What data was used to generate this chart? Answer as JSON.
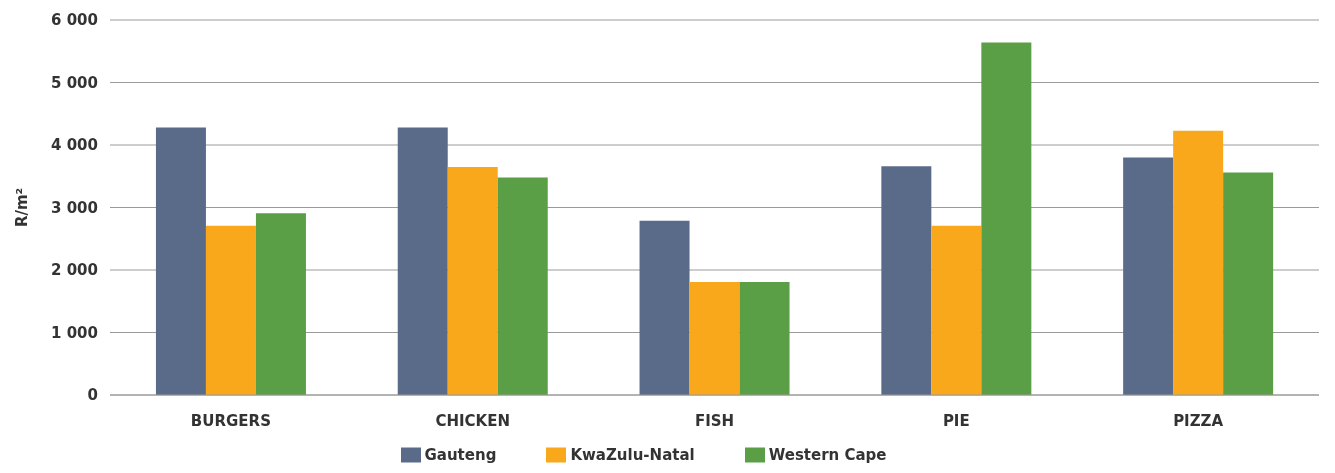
{
  "chart_data": {
    "type": "bar",
    "ylabel": "R/m²",
    "categories": [
      "BURGERS",
      "CHICKEN",
      "FISH",
      "PIE",
      "PIZZA"
    ],
    "series": [
      {
        "name": "Gauteng",
        "color": "#5a6b8a",
        "values": [
          4280,
          4280,
          2790,
          3660,
          3800
        ]
      },
      {
        "name": "KwaZulu-Natal",
        "color": "#f9a81b",
        "values": [
          2710,
          3650,
          1810,
          2710,
          4230
        ]
      },
      {
        "name": "Western Cape",
        "color": "#5a9e45",
        "values": [
          2910,
          3480,
          1810,
          5640,
          3560
        ]
      }
    ],
    "ylim": [
      0,
      6000
    ],
    "yticks": [
      {
        "value": 0,
        "label": "0"
      },
      {
        "value": 1000,
        "label": "1 000"
      },
      {
        "value": 2000,
        "label": "2 000"
      },
      {
        "value": 3000,
        "label": "3 000"
      },
      {
        "value": 4000,
        "label": "4 000"
      },
      {
        "value": 5000,
        "label": "5 000"
      },
      {
        "value": 6000,
        "label": "6 000"
      }
    ],
    "grid": "y",
    "legend": "bottom"
  }
}
